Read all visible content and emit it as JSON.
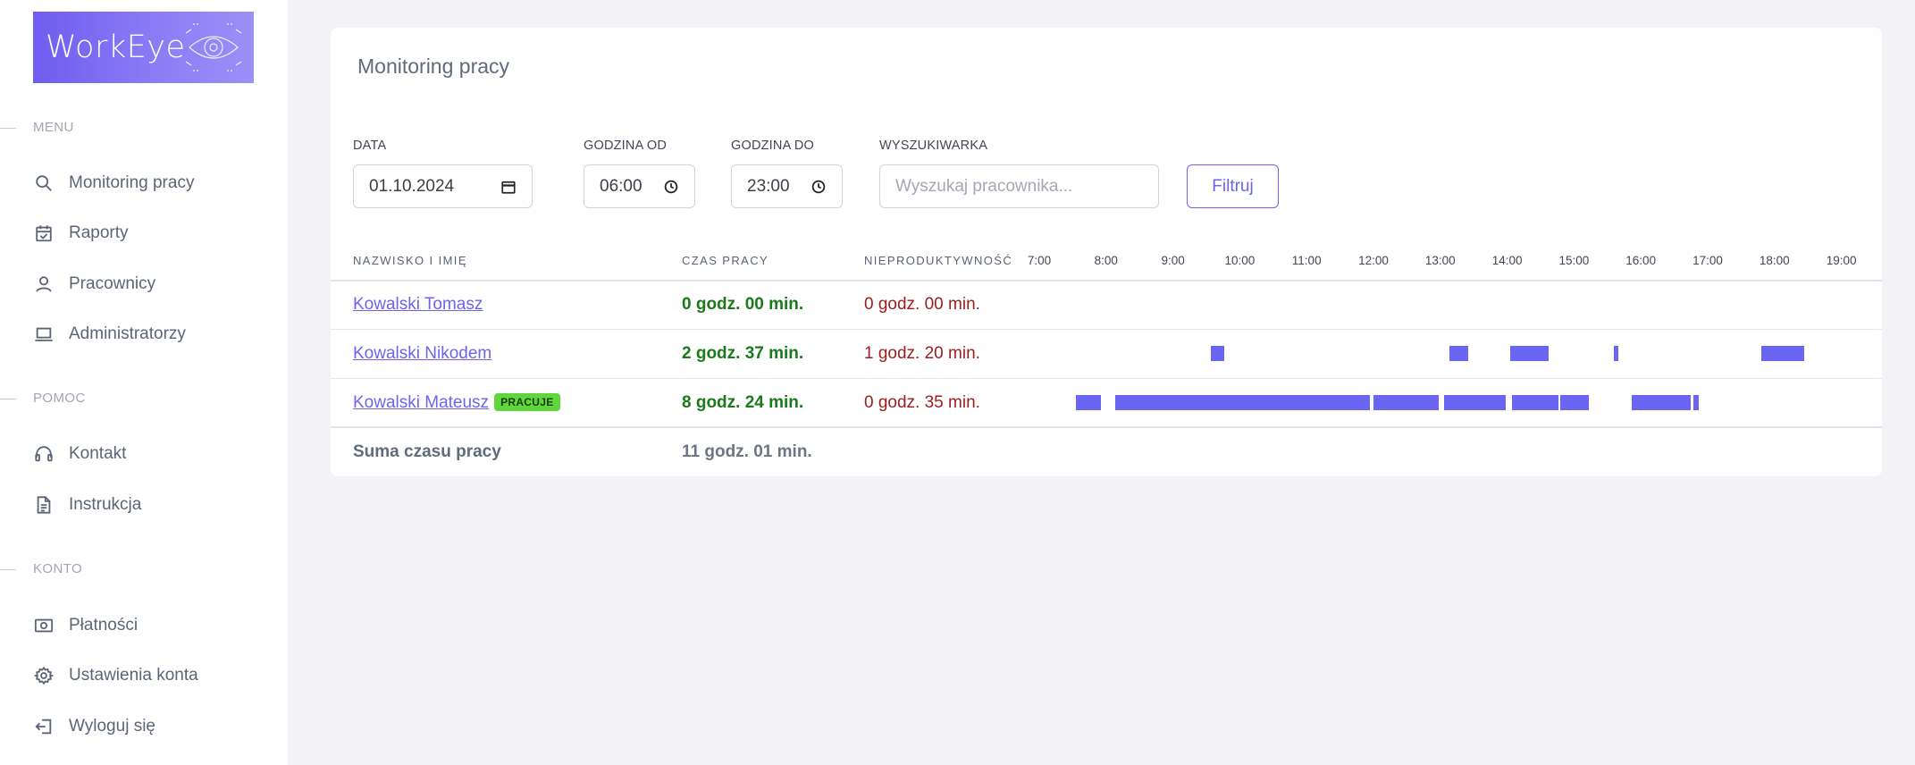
{
  "app": {
    "logo_text": "WorkEye"
  },
  "sidebar": {
    "sections": [
      {
        "label": "MENU"
      },
      {
        "label": "POMOC"
      },
      {
        "label": "KONTO"
      }
    ],
    "items": [
      {
        "label": "Monitoring pracy",
        "icon": "search-icon"
      },
      {
        "label": "Raporty",
        "icon": "calendar-icon"
      },
      {
        "label": "Pracownicy",
        "icon": "user-icon"
      },
      {
        "label": "Administratorzy",
        "icon": "laptop-icon"
      },
      {
        "label": "Kontakt",
        "icon": "headset-icon"
      },
      {
        "label": "Instrukcja",
        "icon": "document-icon"
      },
      {
        "label": "Płatności",
        "icon": "money-icon"
      },
      {
        "label": "Ustawienia konta",
        "icon": "gear-icon"
      },
      {
        "label": "Wyloguj się",
        "icon": "logout-icon"
      }
    ]
  },
  "page": {
    "title": "Monitoring pracy"
  },
  "filters": {
    "date_label": "DATA",
    "date_value": "01.10.2024",
    "from_label": "GODZINA OD",
    "from_value": "06:00",
    "to_label": "GODZINA DO",
    "to_value": "23:00",
    "search_label": "WYSZUKIWARKA",
    "search_placeholder": "Wyszukaj pracownika...",
    "filter_button": "Filtruj"
  },
  "table": {
    "headers": {
      "name": "NAZWISKO I IMIĘ",
      "work": "CZAS PRACY",
      "unprod": "NIEPRODUKTYWNOŚĆ"
    },
    "hours": [
      "7:00",
      "8:00",
      "9:00",
      "10:00",
      "11:00",
      "12:00",
      "13:00",
      "14:00",
      "15:00",
      "16:00",
      "17:00",
      "18:00",
      "19:00"
    ],
    "rows": [
      {
        "name": "Kowalski Tomasz",
        "badge": "",
        "work": "0 godz. 00 min.",
        "unprod": "0 godz. 00 min.",
        "activity": []
      },
      {
        "name": "Kowalski Nikodem",
        "badge": "",
        "work": "2 godz. 37 min.",
        "unprod": "1 godz. 20 min.",
        "activity": [
          [
            9.57,
            9.77
          ],
          [
            13.13,
            13.42
          ],
          [
            14.05,
            14.62
          ],
          [
            15.6,
            15.66
          ],
          [
            17.8,
            18.45
          ]
        ]
      },
      {
        "name": "Kowalski Mateusz",
        "badge": "PRACUJE",
        "work": "8 godz. 24 min.",
        "unprod": "0 godz. 35 min.",
        "activity": [
          [
            7.55,
            7.92
          ],
          [
            8.13,
            11.95
          ],
          [
            12.0,
            12.98
          ],
          [
            13.05,
            13.98
          ],
          [
            14.07,
            14.77
          ],
          [
            14.8,
            15.22
          ],
          [
            15.87,
            16.75
          ],
          [
            16.78,
            16.86
          ]
        ]
      }
    ],
    "sum": {
      "label": "Suma czasu pracy",
      "value": "11 godz. 01 min."
    }
  },
  "colors": {
    "accent": "#6c63f0",
    "activity_bar": "#6b66f2",
    "work_time": "#1a7a1a",
    "unproductive": "#9b1c1c",
    "badge": "#5ed63c"
  }
}
